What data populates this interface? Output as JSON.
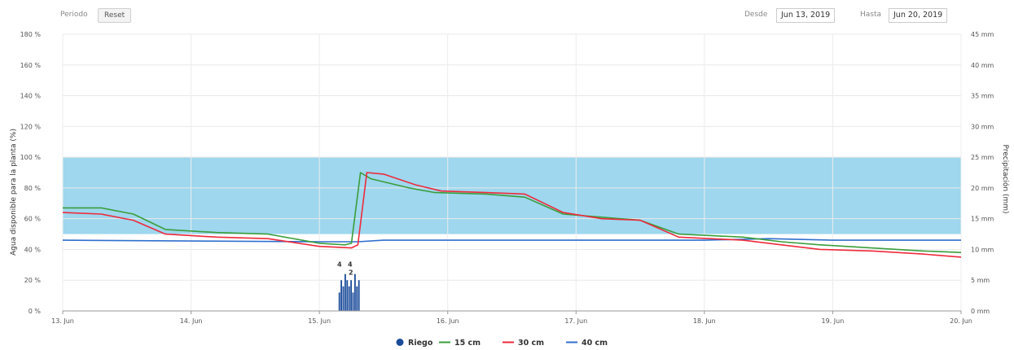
{
  "toolbar": {
    "period_label": "Periodo",
    "reset_label": "Reset",
    "from_label": "Desde",
    "from_value": "Jun 13, 2019",
    "to_label": "Hasta",
    "to_value": "Jun 20, 2019"
  },
  "colors": {
    "band": "#9ed7ee",
    "s15": "#3a9d3a",
    "s30": "#ee2a3b",
    "s40": "#2f6fce",
    "riego": "#1a4b9a"
  },
  "chart_data": {
    "type": "line",
    "xlabel": "",
    "ylabel": "Agua disponible para la planta (%)",
    "y2label": "Precipitación (mm)",
    "x_ticks": [
      "13. Jun",
      "14. Jun",
      "15. Jun",
      "16. Jun",
      "17. Jun",
      "18. Jun",
      "19. Jun",
      "20. Jun"
    ],
    "xlim": [
      13,
      20
    ],
    "ylim": [
      0,
      180
    ],
    "y_ticks": [
      "0 %",
      "20 %",
      "40 %",
      "60 %",
      "80 %",
      "100 %",
      "120 %",
      "140 %",
      "160 %",
      "180 %"
    ],
    "y2lim": [
      0,
      45
    ],
    "y2_ticks": [
      "0 mm",
      "5 mm",
      "10 mm",
      "15 mm",
      "20 mm",
      "25 mm",
      "30 mm",
      "35 mm",
      "40 mm",
      "45 mm"
    ],
    "optimal_band": [
      50,
      100
    ],
    "series": [
      {
        "name": "15 cm",
        "key": "s15",
        "points": [
          [
            13,
            67
          ],
          [
            13.3,
            67
          ],
          [
            13.55,
            63
          ],
          [
            13.8,
            53
          ],
          [
            14.2,
            51
          ],
          [
            14.6,
            50
          ],
          [
            15.0,
            44
          ],
          [
            15.2,
            43
          ],
          [
            15.25,
            44
          ],
          [
            15.32,
            90
          ],
          [
            15.4,
            86
          ],
          [
            15.7,
            80
          ],
          [
            15.9,
            77
          ],
          [
            16.3,
            76
          ],
          [
            16.6,
            74
          ],
          [
            16.9,
            63
          ],
          [
            17.2,
            61
          ],
          [
            17.5,
            59
          ],
          [
            17.8,
            50
          ],
          [
            18.3,
            48
          ],
          [
            18.6,
            45
          ],
          [
            18.9,
            43
          ],
          [
            19.3,
            41
          ],
          [
            19.7,
            39
          ],
          [
            20,
            38
          ]
        ]
      },
      {
        "name": "30 cm",
        "key": "s30",
        "points": [
          [
            13,
            64
          ],
          [
            13.3,
            63
          ],
          [
            13.55,
            59
          ],
          [
            13.8,
            50
          ],
          [
            14.2,
            48
          ],
          [
            14.6,
            47
          ],
          [
            15.0,
            42
          ],
          [
            15.25,
            41
          ],
          [
            15.3,
            43
          ],
          [
            15.37,
            90
          ],
          [
            15.5,
            89
          ],
          [
            15.75,
            82
          ],
          [
            15.95,
            78
          ],
          [
            16.3,
            77
          ],
          [
            16.6,
            76
          ],
          [
            16.9,
            64
          ],
          [
            17.2,
            60
          ],
          [
            17.5,
            59
          ],
          [
            17.8,
            48
          ],
          [
            18.3,
            46
          ],
          [
            18.6,
            43
          ],
          [
            18.9,
            40
          ],
          [
            19.3,
            39
          ],
          [
            19.7,
            37
          ],
          [
            20,
            35
          ]
        ]
      },
      {
        "name": "40 cm",
        "key": "s40",
        "points": [
          [
            13,
            46
          ],
          [
            15.0,
            45
          ],
          [
            15.3,
            45
          ],
          [
            15.5,
            46
          ],
          [
            16.5,
            46
          ],
          [
            17.0,
            46
          ],
          [
            18.0,
            46
          ],
          [
            18.5,
            47
          ],
          [
            19.0,
            46
          ],
          [
            20,
            46
          ]
        ]
      }
    ],
    "irrigation": {
      "name": "Riego",
      "labels": [
        "4",
        "4",
        "2"
      ],
      "bars_mm": [
        3,
        5,
        4,
        6,
        5,
        4,
        5,
        3,
        6,
        4,
        5
      ]
    },
    "legend_position": "bottom-center"
  }
}
